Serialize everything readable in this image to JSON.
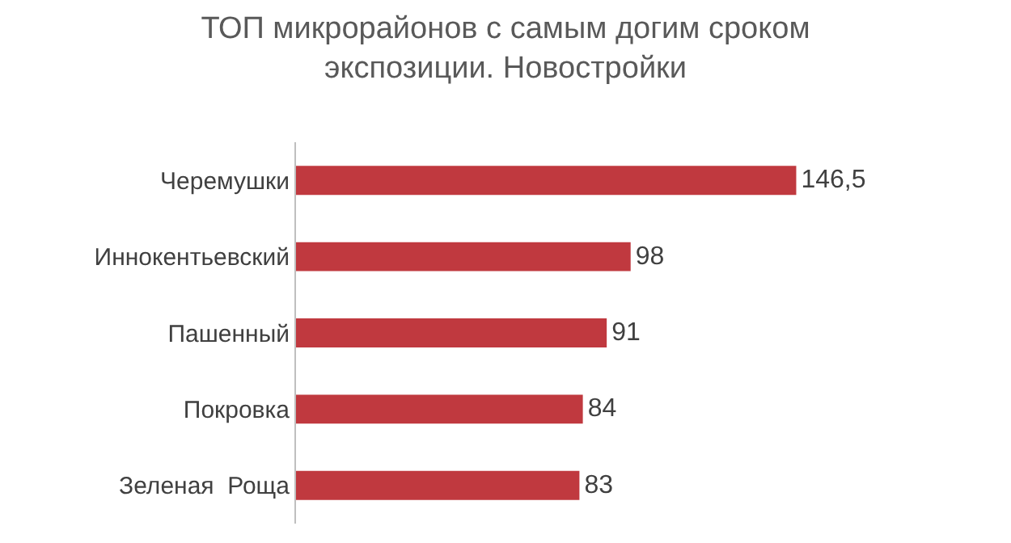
{
  "chart_data": {
    "type": "bar",
    "orientation": "horizontal",
    "title": "ТОП микрорайонов с самым догим сроком\nэкспозиции. Новостройки",
    "categories": [
      "Черемушки",
      "Иннокентьевский",
      "Пашенный",
      "Покровка",
      "Зеленая  Роща"
    ],
    "values": [
      146.5,
      98,
      91,
      84,
      83
    ],
    "value_labels": [
      "146,5",
      "98",
      "91",
      "84",
      "83"
    ],
    "color": "#c0393f",
    "tick_labels": "y"
  }
}
